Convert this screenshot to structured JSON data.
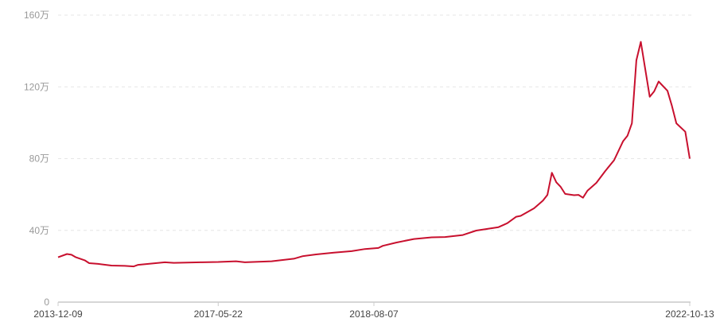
{
  "chart_data": {
    "type": "line",
    "title": "",
    "xlabel": "",
    "ylabel": "",
    "ylim": [
      0,
      160
    ],
    "y_ticks": [
      "0",
      "40万",
      "80万",
      "120万",
      "160万"
    ],
    "y_tick_values": [
      0,
      40,
      80,
      120,
      160
    ],
    "x_tick_labels": [
      {
        "index": 0,
        "label": "2013-12-09"
      },
      {
        "index": 36,
        "label": "2017-05-22"
      },
      {
        "index": 71,
        "label": "2018-08-07"
      },
      {
        "index": 142,
        "label": "2022-10-13"
      }
    ],
    "x_range": [
      0,
      142
    ],
    "grid": true,
    "line_color": "#c8102e",
    "points": [
      [
        0,
        25.0
      ],
      [
        2,
        26.8
      ],
      [
        3,
        26.4
      ],
      [
        4,
        25.0
      ],
      [
        6,
        23.3
      ],
      [
        7,
        21.7
      ],
      [
        9,
        21.3
      ],
      [
        12,
        20.4
      ],
      [
        15,
        20.2
      ],
      [
        17,
        19.9
      ],
      [
        18,
        20.8
      ],
      [
        24,
        22.2
      ],
      [
        26,
        21.9
      ],
      [
        32,
        22.2
      ],
      [
        36,
        22.4
      ],
      [
        40,
        22.8
      ],
      [
        42,
        22.2
      ],
      [
        48,
        22.8
      ],
      [
        53,
        24.2
      ],
      [
        55,
        25.6
      ],
      [
        58,
        26.6
      ],
      [
        62,
        27.6
      ],
      [
        66,
        28.4
      ],
      [
        69,
        29.6
      ],
      [
        72,
        30.2
      ],
      [
        73,
        31.4
      ],
      [
        76,
        33.2
      ],
      [
        80,
        35.2
      ],
      [
        84,
        36.1
      ],
      [
        87,
        36.3
      ],
      [
        91,
        37.4
      ],
      [
        94,
        39.9
      ],
      [
        99,
        41.8
      ],
      [
        101,
        44.0
      ],
      [
        103,
        47.6
      ],
      [
        104,
        48.1
      ],
      [
        107,
        52.3
      ],
      [
        109,
        56.6
      ],
      [
        110,
        59.8
      ],
      [
        111,
        72.1
      ],
      [
        112,
        66.8
      ],
      [
        113,
        64.2
      ],
      [
        114,
        60.3
      ],
      [
        116,
        59.6
      ],
      [
        117,
        59.8
      ],
      [
        118,
        58.2
      ],
      [
        119,
        62.1
      ],
      [
        121,
        66.5
      ],
      [
        123,
        73.1
      ],
      [
        125,
        79.1
      ],
      [
        127,
        89.6
      ],
      [
        128,
        92.7
      ],
      [
        129,
        99.7
      ],
      [
        130,
        134.8
      ],
      [
        131,
        145.1
      ],
      [
        133,
        114.5
      ],
      [
        134,
        117.5
      ],
      [
        135,
        123.0
      ],
      [
        137,
        117.8
      ],
      [
        138,
        109.4
      ],
      [
        139,
        99.7
      ],
      [
        141,
        95.0
      ],
      [
        142,
        80.0
      ]
    ]
  }
}
